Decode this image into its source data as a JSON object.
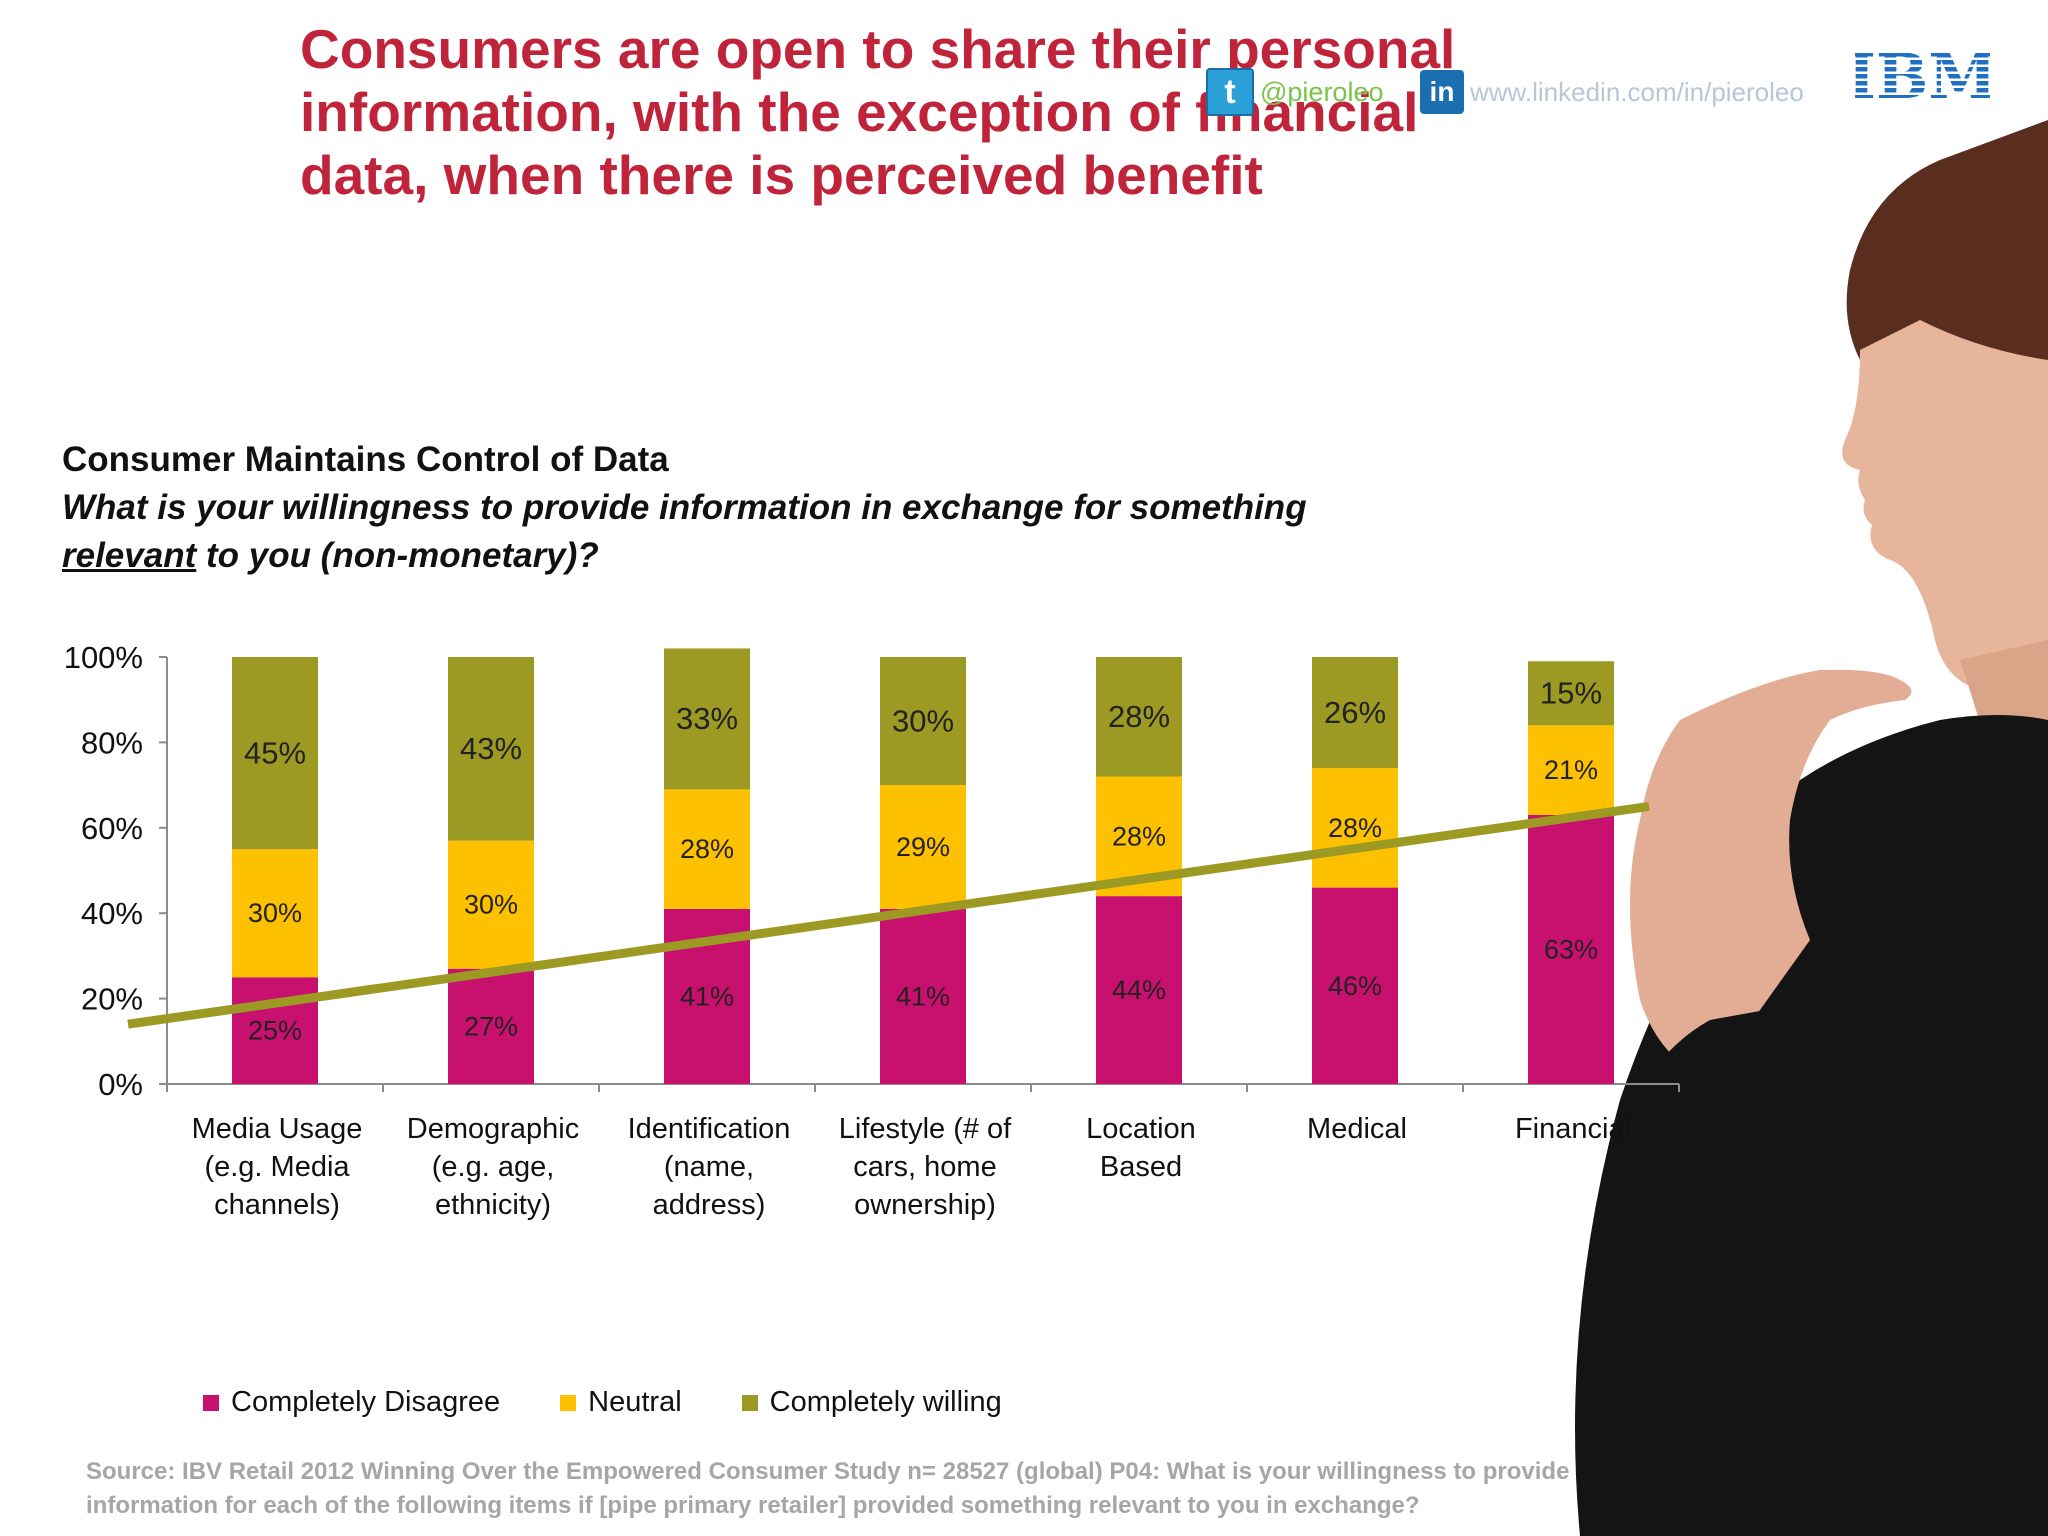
{
  "title": "Consumers are open to share their personal information, with the exception of financial data, when there is perceived benefit",
  "social": {
    "twitter_handle": "@pieroleo",
    "linkedin_url": "www.linkedin.com/in/pieroleo",
    "twitter_glyph": "t",
    "linkedin_glyph": "in"
  },
  "brand": {
    "logo_text": "IBM",
    "logo_color": "#1f70c1"
  },
  "heading": {
    "line1": "Consumer Maintains Control of Data",
    "q_part1": "What is your willingness to provide information in exchange for something ",
    "q_emph": "relevant",
    "q_part2": "  to you (non-monetary)?"
  },
  "chart_data": {
    "type": "bar",
    "stacked": true,
    "categories": [
      "Media Usage (e.g. Media channels)",
      "Demographic (e.g. age, ethnicity)",
      "Identification (name, address)",
      "Lifestyle (# of cars, home ownership)",
      "Location Based",
      "Medical",
      "Financial"
    ],
    "category_lines": [
      [
        "Media Usage",
        "(e.g. Media",
        "channels)"
      ],
      [
        "Demographic",
        "(e.g. age,",
        "ethnicity)"
      ],
      [
        "Identification",
        "(name,",
        "address)"
      ],
      [
        "Lifestyle (# of",
        "cars, home",
        "ownership)"
      ],
      [
        "Location",
        "Based"
      ],
      [
        "Medical"
      ],
      [
        "Financial"
      ]
    ],
    "series": [
      {
        "name": "Completely Disagree",
        "color": "#c8106e",
        "values": [
          25,
          27,
          41,
          41,
          44,
          46,
          63
        ]
      },
      {
        "name": "Neutral",
        "color": "#fdc100",
        "values": [
          30,
          30,
          28,
          29,
          28,
          28,
          21
        ]
      },
      {
        "name": "Completely willing",
        "color": "#9c9a23",
        "values": [
          45,
          43,
          33,
          30,
          28,
          26,
          15
        ]
      }
    ],
    "ylim": [
      0,
      100
    ],
    "yticks": [
      "0%",
      "20%",
      "40%",
      "60%",
      "80%",
      "100%"
    ],
    "trendline": {
      "color": "#9c9a23",
      "start_value": 14,
      "end_value": 65
    }
  },
  "source": "Source: IBV Retail 2012 Winning Over the Empowered Consumer Study n= 28527 (global) P04: What is your willingness to provide information for each of the following items if [pipe primary retailer] provided something relevant to you in exchange?"
}
